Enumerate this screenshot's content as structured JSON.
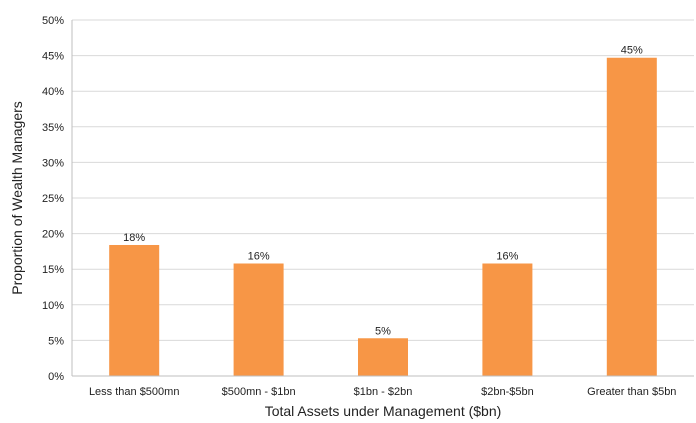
{
  "chart_data": {
    "type": "bar",
    "categories": [
      "Less than $500mn",
      "$500mn - $1bn",
      "$1bn - $2bn",
      "$2bn-$5bn",
      "Greater than $5bn"
    ],
    "values": [
      18.4,
      15.8,
      5.3,
      15.8,
      44.7
    ],
    "data_labels": [
      "18%",
      "16%",
      "5%",
      "16%",
      "45%"
    ],
    "xlabel": "Total Assets under Management ($bn)",
    "ylabel": "Proportion of Wealth Managers",
    "ylim": [
      0,
      50
    ],
    "yticks": [
      0,
      5,
      10,
      15,
      20,
      25,
      30,
      35,
      40,
      45,
      50
    ],
    "ytick_labels": [
      "0%",
      "5%",
      "10%",
      "15%",
      "20%",
      "25%",
      "30%",
      "35%",
      "40%",
      "45%",
      "50%"
    ],
    "grid": "horizontal",
    "bar_color": "#F79646",
    "legend": "none"
  }
}
